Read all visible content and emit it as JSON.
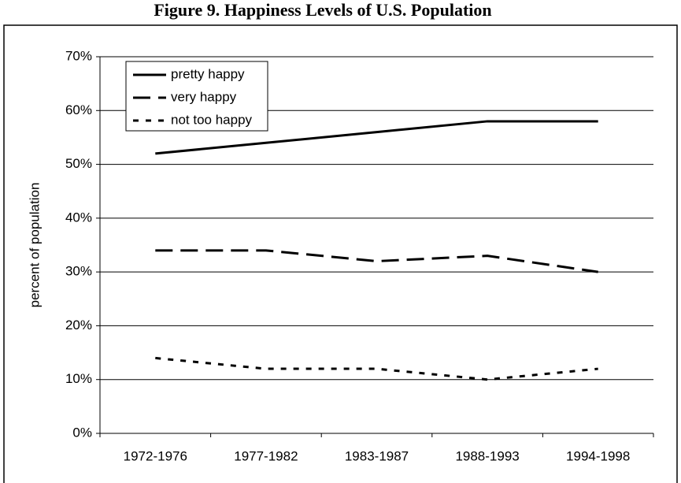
{
  "chart_data": {
    "type": "line",
    "title": "Figure 9. Happiness Levels of U.S. Population",
    "y_label": "percent of population",
    "categories": [
      "1972-1976",
      "1977-1982",
      "1983-1987",
      "1988-1993",
      "1994-1998"
    ],
    "series": [
      {
        "name": "pretty happy",
        "color": "#000000",
        "dash": "solid",
        "values": [
          52,
          54,
          56,
          58,
          58
        ]
      },
      {
        "name": "very happy",
        "color": "#000000",
        "dash": "long",
        "values": [
          34,
          34,
          32,
          33,
          30
        ]
      },
      {
        "name": "not too happy",
        "color": "#000000",
        "dash": "short",
        "values": [
          14,
          12,
          12,
          10,
          12
        ]
      }
    ],
    "ylim": [
      0,
      70
    ],
    "yticks": [
      {
        "value": 0,
        "label": "0%"
      },
      {
        "value": 10,
        "label": "10%"
      },
      {
        "value": 20,
        "label": "20%"
      },
      {
        "value": 30,
        "label": "30%"
      },
      {
        "value": 40,
        "label": "40%"
      },
      {
        "value": 50,
        "label": "50%"
      },
      {
        "value": 60,
        "label": "60%"
      },
      {
        "value": 70,
        "label": "70%"
      }
    ],
    "grid": true,
    "legend": "top-left"
  }
}
